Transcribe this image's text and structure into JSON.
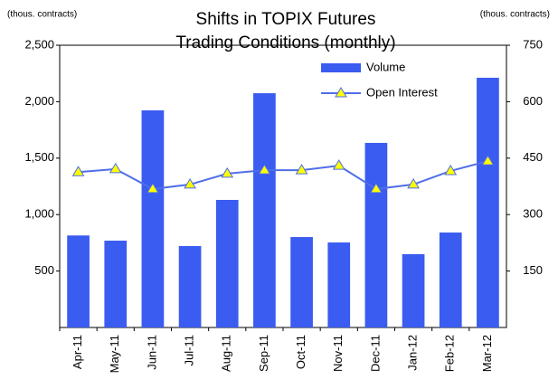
{
  "chart_data": {
    "type": "bar_line",
    "title": [
      "Shifts in TOPIX Futures",
      "Trading Conditions (monthly)"
    ],
    "y_label": "(thous. contracts)",
    "y2_label": "(thous. contracts)",
    "categories": [
      "Apr-11",
      "May-11",
      "Jun-11",
      "Jul-11",
      "Aug-11",
      "Sep-11",
      "Oct-11",
      "Nov-11",
      "Dec-11",
      "Jan-12",
      "Feb-12",
      "Mar-12"
    ],
    "series": [
      {
        "name": "Volume",
        "type": "bar",
        "color": "#3a5cf0",
        "values": [
          815,
          769,
          1923,
          721,
          1130,
          2075,
          801,
          753,
          1635,
          649,
          841,
          2212
        ]
      },
      {
        "name": "Open Interest",
        "type": "line",
        "axis": "y2",
        "color": "#4f6ee8",
        "marker_color": "#ffff00",
        "values": [
          413,
          421,
          368,
          380,
          409,
          418,
          418,
          430,
          368,
          380,
          416,
          442
        ]
      }
    ],
    "ylim": [
      0,
      2500
    ],
    "yticks": [
      {
        "value": 500,
        "label": "500"
      },
      {
        "value": 1000,
        "label": "1,000"
      },
      {
        "value": 1500,
        "label": "1,500"
      },
      {
        "value": 2000,
        "label": "2,000"
      },
      {
        "value": 2500,
        "label": "2,500"
      }
    ],
    "y2lim": [
      0,
      750
    ],
    "y2ticks": [
      150,
      300,
      450,
      600,
      750
    ],
    "legend": "top-right"
  }
}
